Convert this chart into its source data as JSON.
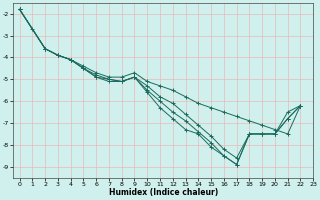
{
  "xlabel": "Humidex (Indice chaleur)",
  "xlim": [
    -0.5,
    23
  ],
  "ylim": [
    -9.5,
    -1.5
  ],
  "yticks": [
    -9,
    -8,
    -7,
    -6,
    -5,
    -4,
    -3,
    -2
  ],
  "xticks": [
    0,
    1,
    2,
    3,
    4,
    5,
    6,
    7,
    8,
    9,
    10,
    11,
    12,
    13,
    14,
    15,
    16,
    17,
    18,
    19,
    20,
    21,
    22,
    23
  ],
  "bg_color": "#cff0ec",
  "line_color": "#1a6b5e",
  "grid_color_major": "#e8b8b8",
  "lines": [
    {
      "x": [
        0,
        1,
        2,
        3,
        4,
        5,
        6,
        7,
        8,
        9,
        10,
        11,
        12,
        13,
        14,
        15,
        16,
        17,
        18,
        19,
        20,
        21,
        22
      ],
      "y": [
        -1.8,
        -2.7,
        -3.6,
        -3.9,
        -4.1,
        -4.4,
        -4.7,
        -4.9,
        -4.9,
        -4.7,
        -5.1,
        -5.3,
        -5.5,
        -5.8,
        -6.1,
        -6.3,
        -6.5,
        -6.7,
        -6.9,
        -7.1,
        -7.3,
        -7.5,
        -6.2
      ]
    },
    {
      "x": [
        0,
        2,
        3,
        4,
        5,
        6,
        7,
        8,
        9,
        10,
        11,
        12,
        13,
        14,
        15,
        16,
        17,
        18,
        19,
        20,
        21,
        22
      ],
      "y": [
        -1.8,
        -3.6,
        -3.9,
        -4.1,
        -4.5,
        -4.8,
        -5.0,
        -5.1,
        -4.9,
        -5.3,
        -5.8,
        -6.1,
        -6.6,
        -7.1,
        -7.6,
        -8.2,
        -8.6,
        -7.5,
        -7.5,
        -7.5,
        -6.8,
        -6.2
      ]
    },
    {
      "x": [
        0,
        2,
        3,
        4,
        5,
        6,
        7,
        8,
        9,
        10,
        11,
        12,
        13,
        14,
        15,
        16,
        17,
        18,
        19,
        20,
        21,
        22
      ],
      "y": [
        -1.8,
        -3.6,
        -3.9,
        -4.1,
        -4.5,
        -4.9,
        -5.0,
        -5.1,
        -4.9,
        -5.5,
        -6.0,
        -6.5,
        -6.9,
        -7.4,
        -7.9,
        -8.5,
        -8.9,
        -7.5,
        -7.5,
        -7.5,
        -6.8,
        -6.2
      ]
    },
    {
      "x": [
        0,
        2,
        3,
        4,
        5,
        6,
        7,
        8,
        9,
        10,
        11,
        12,
        13,
        14,
        15,
        16,
        17,
        18,
        19,
        20,
        21,
        22
      ],
      "y": [
        -1.8,
        -3.6,
        -3.9,
        -4.1,
        -4.5,
        -4.9,
        -5.1,
        -5.1,
        -4.9,
        -5.6,
        -6.3,
        -6.8,
        -7.3,
        -7.5,
        -8.1,
        -8.5,
        -8.9,
        -7.5,
        -7.5,
        -7.5,
        -6.5,
        -6.2
      ]
    }
  ]
}
